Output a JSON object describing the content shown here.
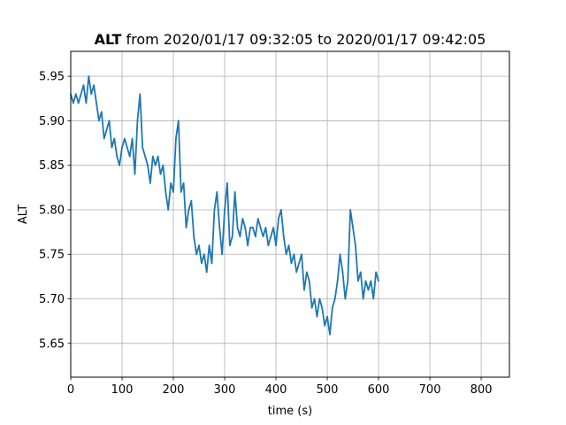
{
  "chart_data": {
    "type": "line",
    "title": {
      "bold": "ALT",
      "rest": " from 2020/01/17 09:32:05 to 2020/01/17 09:42:05"
    },
    "xlabel": "time (s)",
    "ylabel": "ALT",
    "xlim": [
      0,
      855
    ],
    "ylim": [
      5.612,
      5.978
    ],
    "xticks": [
      0,
      100,
      200,
      300,
      400,
      500,
      600,
      700,
      800
    ],
    "yticks": [
      5.65,
      5.7,
      5.75,
      5.8,
      5.85,
      5.9,
      5.95
    ],
    "ytick_labels": [
      "5.65",
      "5.70",
      "5.75",
      "5.80",
      "5.85",
      "5.90",
      "5.95"
    ],
    "grid": true,
    "series_color": "#1f77b4",
    "series": [
      {
        "x": [
          0,
          5,
          10,
          15,
          20,
          25,
          30,
          35,
          40,
          45,
          50,
          55,
          60,
          65,
          70,
          75,
          80,
          85,
          90,
          95,
          100,
          105,
          110,
          115,
          120,
          125,
          130,
          135,
          140,
          145,
          150,
          155,
          160,
          165,
          170,
          175,
          180,
          185,
          190,
          195,
          200,
          205,
          210,
          215,
          220,
          225,
          230,
          235,
          240,
          245,
          250,
          255,
          260,
          265,
          270,
          275,
          280,
          285,
          290,
          295,
          300,
          305,
          310,
          315,
          320,
          325,
          330,
          335,
          340,
          345,
          350,
          355,
          360,
          365,
          370,
          375,
          380,
          385,
          390,
          395,
          400,
          405,
          410,
          415,
          420,
          425,
          430,
          435,
          440,
          445,
          450,
          455,
          460,
          465,
          470,
          475,
          480,
          485,
          490,
          495,
          500,
          505,
          510,
          515,
          520,
          525,
          530,
          535,
          540,
          545,
          550,
          555,
          560,
          565,
          570,
          575,
          580,
          585,
          590,
          595,
          600
        ],
        "y": [
          5.93,
          5.92,
          5.93,
          5.92,
          5.93,
          5.94,
          5.92,
          5.95,
          5.93,
          5.94,
          5.92,
          5.9,
          5.91,
          5.88,
          5.89,
          5.9,
          5.87,
          5.88,
          5.86,
          5.85,
          5.87,
          5.88,
          5.87,
          5.86,
          5.88,
          5.84,
          5.9,
          5.93,
          5.87,
          5.86,
          5.85,
          5.83,
          5.86,
          5.85,
          5.86,
          5.84,
          5.85,
          5.82,
          5.8,
          5.83,
          5.82,
          5.88,
          5.9,
          5.82,
          5.83,
          5.78,
          5.8,
          5.81,
          5.77,
          5.75,
          5.76,
          5.74,
          5.75,
          5.73,
          5.76,
          5.74,
          5.8,
          5.82,
          5.78,
          5.75,
          5.8,
          5.83,
          5.76,
          5.77,
          5.82,
          5.78,
          5.77,
          5.79,
          5.78,
          5.76,
          5.78,
          5.78,
          5.77,
          5.79,
          5.78,
          5.77,
          5.78,
          5.76,
          5.77,
          5.78,
          5.76,
          5.79,
          5.8,
          5.77,
          5.75,
          5.76,
          5.74,
          5.75,
          5.73,
          5.74,
          5.75,
          5.71,
          5.73,
          5.72,
          5.69,
          5.7,
          5.68,
          5.7,
          5.69,
          5.67,
          5.68,
          5.66,
          5.69,
          5.7,
          5.72,
          5.75,
          5.73,
          5.7,
          5.72,
          5.8,
          5.78,
          5.76,
          5.72,
          5.73,
          5.7,
          5.72,
          5.71,
          5.72,
          5.7,
          5.73,
          5.72
        ]
      }
    ]
  }
}
